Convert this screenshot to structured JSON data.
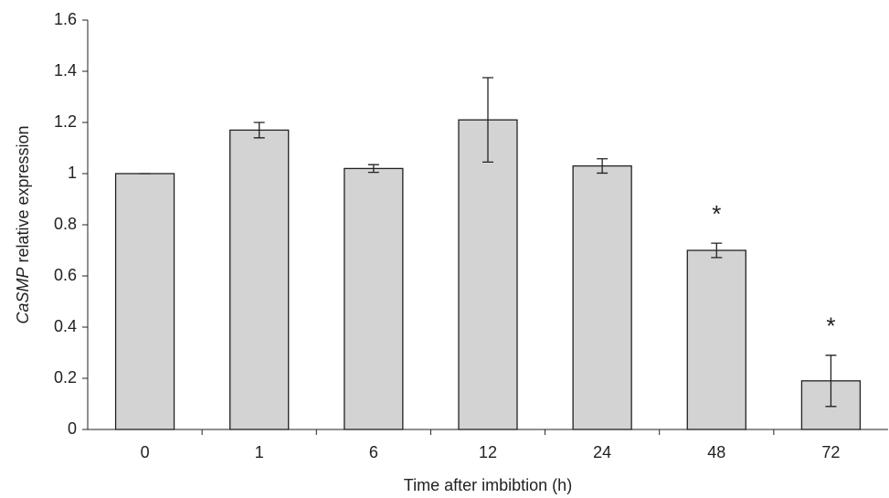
{
  "chart_data": {
    "type": "bar",
    "x_label": "Time after imbibtion (h)",
    "y_label": [
      "CaSMP",
      "relative expression"
    ],
    "categories": [
      "0",
      "1",
      "6",
      "12",
      "24",
      "48",
      "72"
    ],
    "values": [
      1.0,
      1.17,
      1.02,
      1.21,
      1.03,
      0.7,
      0.19
    ],
    "errors": [
      0,
      0.03,
      0.015,
      0.165,
      0.028,
      0.028,
      0.1
    ],
    "value_annotations": [
      null,
      null,
      null,
      null,
      null,
      "*",
      "*"
    ],
    "color": "#d3d3d3",
    "ylim": [
      0,
      1.6
    ],
    "yticks": [
      0,
      0.2,
      0.4,
      0.6,
      0.8,
      1,
      1.2,
      1.4,
      1.6
    ],
    "grid": false
  }
}
